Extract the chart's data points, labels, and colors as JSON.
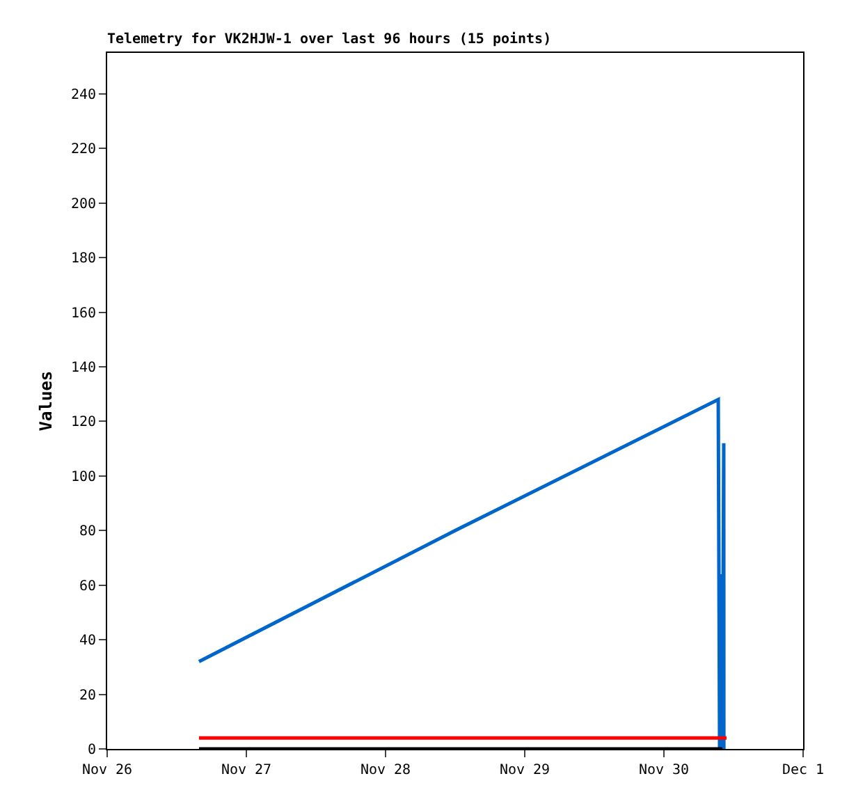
{
  "chart_data": {
    "type": "line",
    "title": "Telemetry for VK2HJW-1 over last 96 hours (15 points)",
    "ylabel": "Values",
    "xlim": [
      "--11-26",
      "--12-01"
    ],
    "xticks": [
      {
        "value": "--11-26",
        "label": "Nov 26"
      },
      {
        "value": "--11-27",
        "label": "Nov 27"
      },
      {
        "value": "--11-28",
        "label": "Nov 28"
      },
      {
        "value": "--11-29",
        "label": "Nov 29"
      },
      {
        "value": "--11-30",
        "label": "Nov 30"
      },
      {
        "value": "--12-01",
        "label": "Dec 1"
      }
    ],
    "ylim": [
      0,
      255
    ],
    "yticks": [
      0,
      20,
      40,
      60,
      80,
      100,
      120,
      140,
      160,
      180,
      200,
      220,
      240
    ],
    "series": [
      {
        "color": "#0066cc",
        "x": [
          "--11-26T15:50",
          "--11-28T12:00",
          "--11-30T09:22",
          "--11-30T09:36",
          "--11-30T09:50",
          "--11-30T10:05",
          "--11-30T10:19",
          "--11-30T10:20"
        ],
        "values": [
          32,
          80,
          128,
          0,
          64,
          0,
          112,
          0
        ]
      },
      {
        "color": "#ff0000",
        "x": [
          "--11-26T15:50",
          "--11-30T10:48"
        ],
        "values": [
          4,
          4
        ]
      },
      {
        "color": "#000000",
        "x": [
          "--11-26T15:50",
          "--11-30T10:05"
        ],
        "values": [
          0,
          0
        ]
      }
    ]
  }
}
